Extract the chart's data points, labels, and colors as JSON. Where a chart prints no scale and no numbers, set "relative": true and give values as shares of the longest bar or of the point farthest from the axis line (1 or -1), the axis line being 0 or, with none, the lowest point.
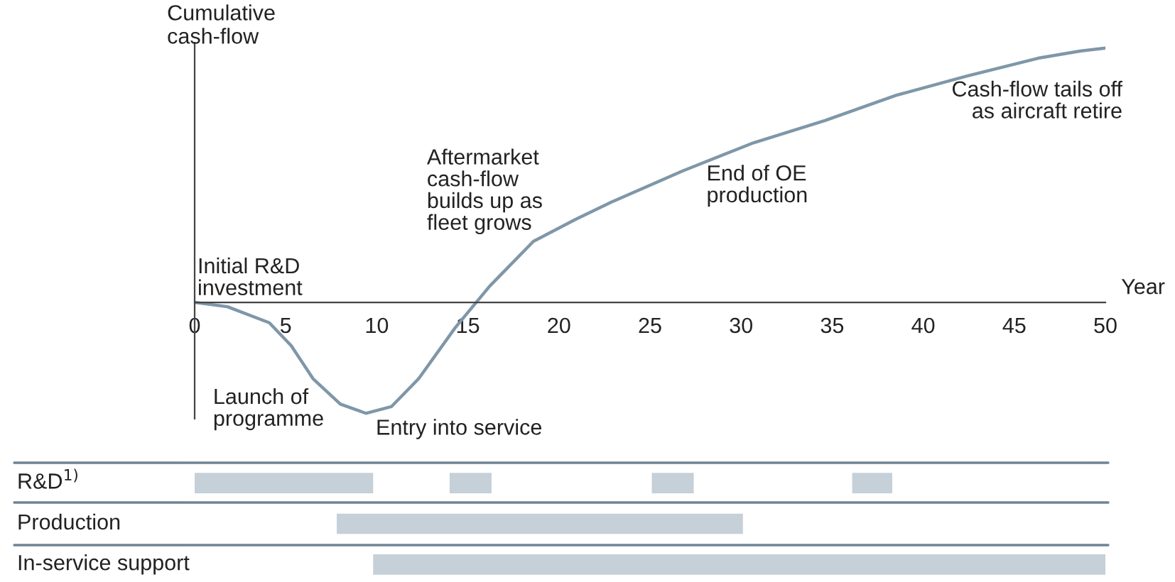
{
  "chart_data": [
    {
      "type": "line",
      "relative": true,
      "xlabel": "Year",
      "ylabel": "Cumulative\ncash-flow",
      "xlim": [
        0,
        50
      ],
      "xticks": [
        0,
        5,
        10,
        15,
        20,
        25,
        30,
        35,
        40,
        45,
        50
      ],
      "grid": false,
      "legend": false,
      "marker": "none",
      "line_style": "solid",
      "series": [
        {
          "color": "#7f97a8",
          "x": [
            0,
            1.8,
            4.1,
            5.3,
            6.5,
            8.0,
            9.4,
            10.8,
            12.3,
            14.3,
            16.2,
            18.6,
            20.9,
            22.9,
            26.8,
            30.7,
            34.6,
            38.5,
            42.4,
            46.3,
            48.6,
            50
          ],
          "values": [
            0,
            -0.017,
            -0.08,
            -0.17,
            -0.3,
            -0.4,
            -0.436,
            -0.41,
            -0.3,
            -0.1,
            0.064,
            0.24,
            0.326,
            0.395,
            0.517,
            0.628,
            0.715,
            0.814,
            0.89,
            0.96,
            0.988,
            1.0
          ]
        }
      ],
      "annotations": [
        {
          "text": "Initial R&D\ninvestment",
          "x": 0,
          "y": 0
        },
        {
          "text": "Launch of\nprogramme",
          "x": 5.3,
          "y": -0.17
        },
        {
          "text": "Entry into service",
          "x": 9.4,
          "y": -0.436
        },
        {
          "text": "Aftermarket\ncash-flow\nbuilds up as\nfleet grows",
          "x": 18.6,
          "y": 0.24
        },
        {
          "text": "End of OE\nproduction",
          "x": 27.4,
          "y": 0.53
        },
        {
          "text": "Cash-flow tails off\nas aircraft retire",
          "x": 50,
          "y": 1.0
        }
      ]
    },
    {
      "type": "bar",
      "orientation": "horizontal",
      "categories": [
        "R&D$^{1)}$",
        "Production",
        "In-service support"
      ],
      "xlim": [
        0,
        50
      ],
      "tick_labels": "y",
      "legend": false,
      "series": [
        {
          "color": "#c5d0d8",
          "base": [
            0,
            7.8,
            9.8
          ],
          "values": [
            9.8,
            22.3,
            40.2
          ]
        },
        {
          "color": "#c5d0d8",
          "base": [
            14.0,
            null,
            null
          ],
          "values": [
            2.3,
            null,
            null
          ]
        },
        {
          "color": "#c5d0d8",
          "base": [
            25.1,
            null,
            null
          ],
          "values": [
            2.3,
            null,
            null
          ]
        },
        {
          "color": "#c5d0d8",
          "base": [
            36.1,
            null,
            null
          ],
          "values": [
            2.2,
            null,
            null
          ]
        }
      ]
    }
  ]
}
